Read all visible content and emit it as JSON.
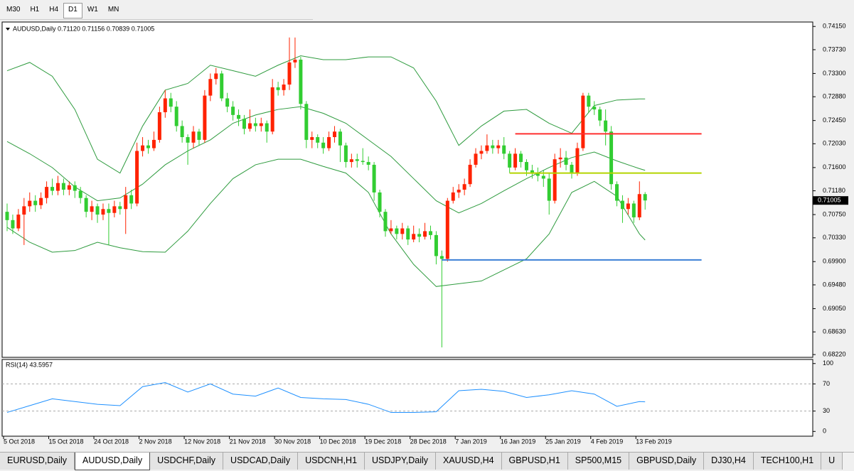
{
  "toolbar": {
    "timeframes": [
      "M30",
      "H1",
      "H4",
      "D1",
      "W1",
      "MN"
    ],
    "active": "D1"
  },
  "chart_data": [
    {
      "type": "candlestick",
      "title": "AUDUSD,Daily  0.71120 0.71156 0.70839 0.71005",
      "bull_color": "#ff2200",
      "bear_color": "#32cd32",
      "ylim": [
        0.6817,
        0.7423
      ],
      "yticks": [
        {
          "value": 0.7415,
          "label": "0.74150"
        },
        {
          "value": 0.7373,
          "label": "0.73730"
        },
        {
          "value": 0.733,
          "label": "0.73300"
        },
        {
          "value": 0.7288,
          "label": "0.72880"
        },
        {
          "value": 0.7245,
          "label": "0.72450"
        },
        {
          "value": 0.7203,
          "label": "0.72030"
        },
        {
          "value": 0.716,
          "label": "0.71600"
        },
        {
          "value": 0.7118,
          "label": "0.71180"
        },
        {
          "value": 0.7075,
          "label": "0.70750"
        },
        {
          "value": 0.7033,
          "label": "0.70330"
        },
        {
          "value": 0.699,
          "label": "0.69900"
        },
        {
          "value": 0.6948,
          "label": "0.69480"
        },
        {
          "value": 0.6905,
          "label": "0.69050"
        },
        {
          "value": 0.6863,
          "label": "0.68630"
        },
        {
          "value": 0.6822,
          "label": "0.68220"
        }
      ],
      "current_price": 0.71005,
      "candles": [
        [
          0.708,
          0.7095,
          0.7045,
          0.7065
        ],
        [
          0.7065,
          0.7075,
          0.704,
          0.705
        ],
        [
          0.705,
          0.7085,
          0.7045,
          0.7075
        ],
        [
          0.7075,
          0.7105,
          0.702,
          0.709
        ],
        [
          0.709,
          0.7115,
          0.708,
          0.71
        ],
        [
          0.71,
          0.711,
          0.708,
          0.7092
        ],
        [
          0.7092,
          0.7115,
          0.7085,
          0.7105
        ],
        [
          0.7105,
          0.7135,
          0.7095,
          0.7125
        ],
        [
          0.7125,
          0.714,
          0.711,
          0.7118
        ],
        [
          0.7118,
          0.7145,
          0.711,
          0.7132
        ],
        [
          0.7132,
          0.714,
          0.711,
          0.712
        ],
        [
          0.712,
          0.7135,
          0.711,
          0.7128
        ],
        [
          0.7128,
          0.7135,
          0.7105,
          0.7118
        ],
        [
          0.7118,
          0.7125,
          0.7095,
          0.7105
        ],
        [
          0.7105,
          0.711,
          0.707,
          0.708
        ],
        [
          0.708,
          0.71,
          0.7065,
          0.709
        ],
        [
          0.709,
          0.7095,
          0.706,
          0.7075
        ],
        [
          0.7075,
          0.7095,
          0.7065,
          0.7085
        ],
        [
          0.7085,
          0.7095,
          0.702,
          0.7078
        ],
        [
          0.7078,
          0.71,
          0.707,
          0.709
        ],
        [
          0.709,
          0.7098,
          0.7075,
          0.7085
        ],
        [
          0.7085,
          0.7125,
          0.704,
          0.711
        ],
        [
          0.711,
          0.712,
          0.7085,
          0.7095
        ],
        [
          0.7095,
          0.7205,
          0.709,
          0.719
        ],
        [
          0.719,
          0.7215,
          0.718,
          0.72
        ],
        [
          0.72,
          0.721,
          0.7185,
          0.7195
        ],
        [
          0.7195,
          0.7225,
          0.719,
          0.721
        ],
        [
          0.721,
          0.727,
          0.7205,
          0.726
        ],
        [
          0.726,
          0.73,
          0.725,
          0.7285
        ],
        [
          0.7285,
          0.7295,
          0.726,
          0.727
        ],
        [
          0.727,
          0.728,
          0.7225,
          0.7235
        ],
        [
          0.7235,
          0.7245,
          0.7205,
          0.7215
        ],
        [
          0.7215,
          0.722,
          0.7165,
          0.7205
        ],
        [
          0.7205,
          0.7235,
          0.7195,
          0.7225
        ],
        [
          0.7225,
          0.723,
          0.72,
          0.721
        ],
        [
          0.721,
          0.73,
          0.7205,
          0.729
        ],
        [
          0.729,
          0.733,
          0.728,
          0.732
        ],
        [
          0.732,
          0.734,
          0.731,
          0.733
        ],
        [
          0.733,
          0.7335,
          0.728,
          0.7285
        ],
        [
          0.7285,
          0.7295,
          0.726,
          0.727
        ],
        [
          0.727,
          0.728,
          0.7245,
          0.7255
        ],
        [
          0.7255,
          0.7265,
          0.7235,
          0.7248
        ],
        [
          0.7248,
          0.7255,
          0.722,
          0.723
        ],
        [
          0.723,
          0.7265,
          0.7225,
          0.724
        ],
        [
          0.724,
          0.725,
          0.7225,
          0.7235
        ],
        [
          0.7235,
          0.725,
          0.7225,
          0.724
        ],
        [
          0.724,
          0.7245,
          0.7205,
          0.7225
        ],
        [
          0.7225,
          0.732,
          0.722,
          0.7305
        ],
        [
          0.7305,
          0.7315,
          0.729,
          0.73
        ],
        [
          0.73,
          0.732,
          0.729,
          0.731
        ],
        [
          0.731,
          0.7395,
          0.73,
          0.735
        ],
        [
          0.735,
          0.7395,
          0.734,
          0.7355
        ],
        [
          0.7355,
          0.736,
          0.7265,
          0.7275
        ],
        [
          0.7275,
          0.728,
          0.7195,
          0.721
        ],
        [
          0.721,
          0.7225,
          0.7195,
          0.7215
        ],
        [
          0.7215,
          0.722,
          0.7195,
          0.7205
        ],
        [
          0.7205,
          0.7215,
          0.7185,
          0.7195
        ],
        [
          0.7195,
          0.7225,
          0.719,
          0.7215
        ],
        [
          0.7215,
          0.7235,
          0.7205,
          0.7225
        ],
        [
          0.7225,
          0.723,
          0.717,
          0.72
        ],
        [
          0.72,
          0.7205,
          0.716,
          0.717
        ],
        [
          0.717,
          0.7185,
          0.716,
          0.7175
        ],
        [
          0.7175,
          0.7185,
          0.716,
          0.7172
        ],
        [
          0.7172,
          0.7195,
          0.7165,
          0.717
        ],
        [
          0.717,
          0.718,
          0.7155,
          0.7165
        ],
        [
          0.7165,
          0.717,
          0.71,
          0.7115
        ],
        [
          0.7115,
          0.712,
          0.707,
          0.708
        ],
        [
          0.708,
          0.7085,
          0.7035,
          0.7045
        ],
        [
          0.7045,
          0.7065,
          0.704,
          0.705
        ],
        [
          0.705,
          0.7055,
          0.703,
          0.704
        ],
        [
          0.704,
          0.706,
          0.703,
          0.705
        ],
        [
          0.705,
          0.7055,
          0.702,
          0.703
        ],
        [
          0.703,
          0.7055,
          0.7025,
          0.704
        ],
        [
          0.704,
          0.705,
          0.7025,
          0.7035
        ],
        [
          0.7035,
          0.706,
          0.703,
          0.7045
        ],
        [
          0.7045,
          0.7055,
          0.703,
          0.7038
        ],
        [
          0.7038,
          0.7045,
          0.6985,
          0.7
        ],
        [
          0.7,
          0.701,
          0.6835,
          0.6995
        ],
        [
          0.6995,
          0.7105,
          0.699,
          0.71
        ],
        [
          0.71,
          0.7125,
          0.7095,
          0.7115
        ],
        [
          0.7115,
          0.713,
          0.7105,
          0.712
        ],
        [
          0.712,
          0.714,
          0.711,
          0.713
        ],
        [
          0.713,
          0.7175,
          0.7125,
          0.7165
        ],
        [
          0.7165,
          0.7195,
          0.716,
          0.7185
        ],
        [
          0.7185,
          0.72,
          0.7175,
          0.719
        ],
        [
          0.719,
          0.722,
          0.7185,
          0.72
        ],
        [
          0.72,
          0.721,
          0.7185,
          0.7195
        ],
        [
          0.7195,
          0.721,
          0.7185,
          0.72
        ],
        [
          0.72,
          0.7215,
          0.7175,
          0.7185
        ],
        [
          0.7185,
          0.719,
          0.715,
          0.716
        ],
        [
          0.716,
          0.7195,
          0.7155,
          0.7185
        ],
        [
          0.7185,
          0.719,
          0.716,
          0.717
        ],
        [
          0.717,
          0.7175,
          0.7145,
          0.7155
        ],
        [
          0.7155,
          0.7165,
          0.714,
          0.715
        ],
        [
          0.715,
          0.716,
          0.7135,
          0.7145
        ],
        [
          0.7145,
          0.7155,
          0.7125,
          0.714
        ],
        [
          0.714,
          0.715,
          0.7075,
          0.71
        ],
        [
          0.71,
          0.7185,
          0.7095,
          0.7175
        ],
        [
          0.7175,
          0.7195,
          0.716,
          0.7178
        ],
        [
          0.7178,
          0.719,
          0.7155,
          0.7165
        ],
        [
          0.7165,
          0.717,
          0.714,
          0.715
        ],
        [
          0.715,
          0.7205,
          0.7145,
          0.7195
        ],
        [
          0.7195,
          0.7295,
          0.719,
          0.729
        ],
        [
          0.729,
          0.7295,
          0.726,
          0.727
        ],
        [
          0.727,
          0.728,
          0.7255,
          0.7265
        ],
        [
          0.7265,
          0.727,
          0.7235,
          0.7245
        ],
        [
          0.7245,
          0.7265,
          0.72,
          0.7225
        ],
        [
          0.7225,
          0.7235,
          0.712,
          0.713
        ],
        [
          0.713,
          0.7135,
          0.709,
          0.71
        ],
        [
          0.71,
          0.711,
          0.706,
          0.7085
        ],
        [
          0.7085,
          0.7105,
          0.7075,
          0.7095
        ],
        [
          0.7095,
          0.71,
          0.706,
          0.707
        ],
        [
          0.707,
          0.7135,
          0.7065,
          0.7112
        ],
        [
          0.7112,
          0.71156,
          0.70839,
          0.71005
        ]
      ],
      "dates": [
        "5 Oct 2018",
        null,
        null,
        null,
        null,
        null,
        null,
        null,
        "15 Oct 2018",
        null,
        null,
        null,
        null,
        null,
        null,
        null,
        "24 Oct 2018",
        null,
        null,
        null,
        null,
        null,
        null,
        null,
        "2 Nov 2018",
        null,
        null,
        null,
        null,
        null,
        null,
        null,
        "12 Nov 2018",
        null,
        null,
        null,
        null,
        null,
        null,
        null,
        "21 Nov 2018",
        null,
        null,
        null,
        null,
        null,
        null,
        null,
        "30 Nov 2018",
        null,
        null,
        null,
        null,
        null,
        null,
        null,
        "10 Dec 2018",
        null,
        null,
        null,
        null,
        null,
        null,
        null,
        "19 Dec 2018",
        null,
        null,
        null,
        null,
        null,
        null,
        null,
        "28 Dec 2018",
        null,
        null,
        null,
        null,
        null,
        null,
        null,
        "7 Jan 2019",
        null,
        null,
        null,
        null,
        null,
        null,
        null,
        "16 Jan 2019",
        null,
        null,
        null,
        null,
        null,
        null,
        null,
        "25 Jan 2019",
        null,
        null,
        null,
        null,
        null,
        null,
        null,
        "4 Feb 2019",
        null,
        null,
        null,
        null,
        null,
        null,
        null,
        "13 Feb 2019",
        null
      ],
      "bands": {
        "color": "#2e9b3e",
        "x": [
          0,
          4,
          8,
          12,
          16,
          20,
          24,
          28,
          32,
          36,
          40,
          44,
          48,
          52,
          56,
          60,
          64,
          68,
          72,
          76,
          80,
          84,
          88,
          92,
          96,
          100,
          104,
          108,
          112,
          113
        ],
        "upper": [
          0.7335,
          0.735,
          0.7325,
          0.7265,
          0.7175,
          0.715,
          0.7235,
          0.73,
          0.7312,
          0.7345,
          0.7335,
          0.7325,
          0.7345,
          0.7362,
          0.7355,
          0.7355,
          0.736,
          0.736,
          0.734,
          0.728,
          0.72,
          0.7235,
          0.7262,
          0.7265,
          0.724,
          0.7222,
          0.7272,
          0.7282,
          0.7284,
          0.7284
        ],
        "middle": [
          0.7207,
          0.7185,
          0.716,
          0.7125,
          0.71,
          0.7105,
          0.713,
          0.7165,
          0.719,
          0.721,
          0.724,
          0.7255,
          0.7265,
          0.727,
          0.7258,
          0.724,
          0.721,
          0.718,
          0.714,
          0.71,
          0.7078,
          0.7095,
          0.7118,
          0.714,
          0.716,
          0.7178,
          0.7188,
          0.7172,
          0.7158,
          0.7155
        ],
        "lower": [
          0.7052,
          0.7025,
          0.7007,
          0.701,
          0.7025,
          0.7015,
          0.7008,
          0.7007,
          0.7045,
          0.7095,
          0.714,
          0.7165,
          0.7175,
          0.7175,
          0.7162,
          0.715,
          0.7115,
          0.704,
          0.6985,
          0.6945,
          0.695,
          0.6955,
          0.6975,
          0.6995,
          0.704,
          0.7115,
          0.7135,
          0.7108,
          0.704,
          0.7029
        ]
      },
      "levels": [
        {
          "value": 0.7221,
          "color": "#ff3030",
          "x": [
            90,
            123
          ]
        },
        {
          "value": 0.715,
          "color": "#b4d400",
          "x": [
            89,
            123
          ]
        },
        {
          "value": 0.6993,
          "color": "#3b7fd6",
          "x": [
            77,
            123
          ]
        }
      ]
    },
    {
      "type": "line",
      "title": "RSI(14) 43.5957",
      "color": "#1e90ff",
      "ylim": [
        -7,
        106
      ],
      "yticks": [
        100,
        70,
        30,
        0
      ],
      "levels": [
        70,
        30
      ],
      "x": [
        0,
        4,
        8,
        12,
        16,
        20,
        24,
        28,
        32,
        36,
        40,
        44,
        48,
        52,
        56,
        60,
        64,
        68,
        72,
        76,
        80,
        84,
        88,
        92,
        96,
        100,
        104,
        108,
        112,
        113
      ],
      "values": [
        28,
        38,
        48,
        44,
        40,
        38,
        66,
        72,
        58,
        70,
        55,
        52,
        64,
        50,
        48,
        47,
        40,
        28,
        28,
        29,
        60,
        62,
        59,
        50,
        54,
        60,
        55,
        37,
        44,
        43.5957
      ]
    }
  ],
  "tabs": [
    "EURUSD,Daily",
    "AUDUSD,Daily",
    "USDCHF,Daily",
    "USDCAD,Daily",
    "USDCNH,H1",
    "USDJPY,Daily",
    "XAUUSD,H4",
    "GBPUSD,H1",
    "SP500,M15",
    "GBPUSD,Daily",
    "DJ30,H4",
    "TECH100,H1",
    "U"
  ],
  "active_tab": "AUDUSD,Daily"
}
